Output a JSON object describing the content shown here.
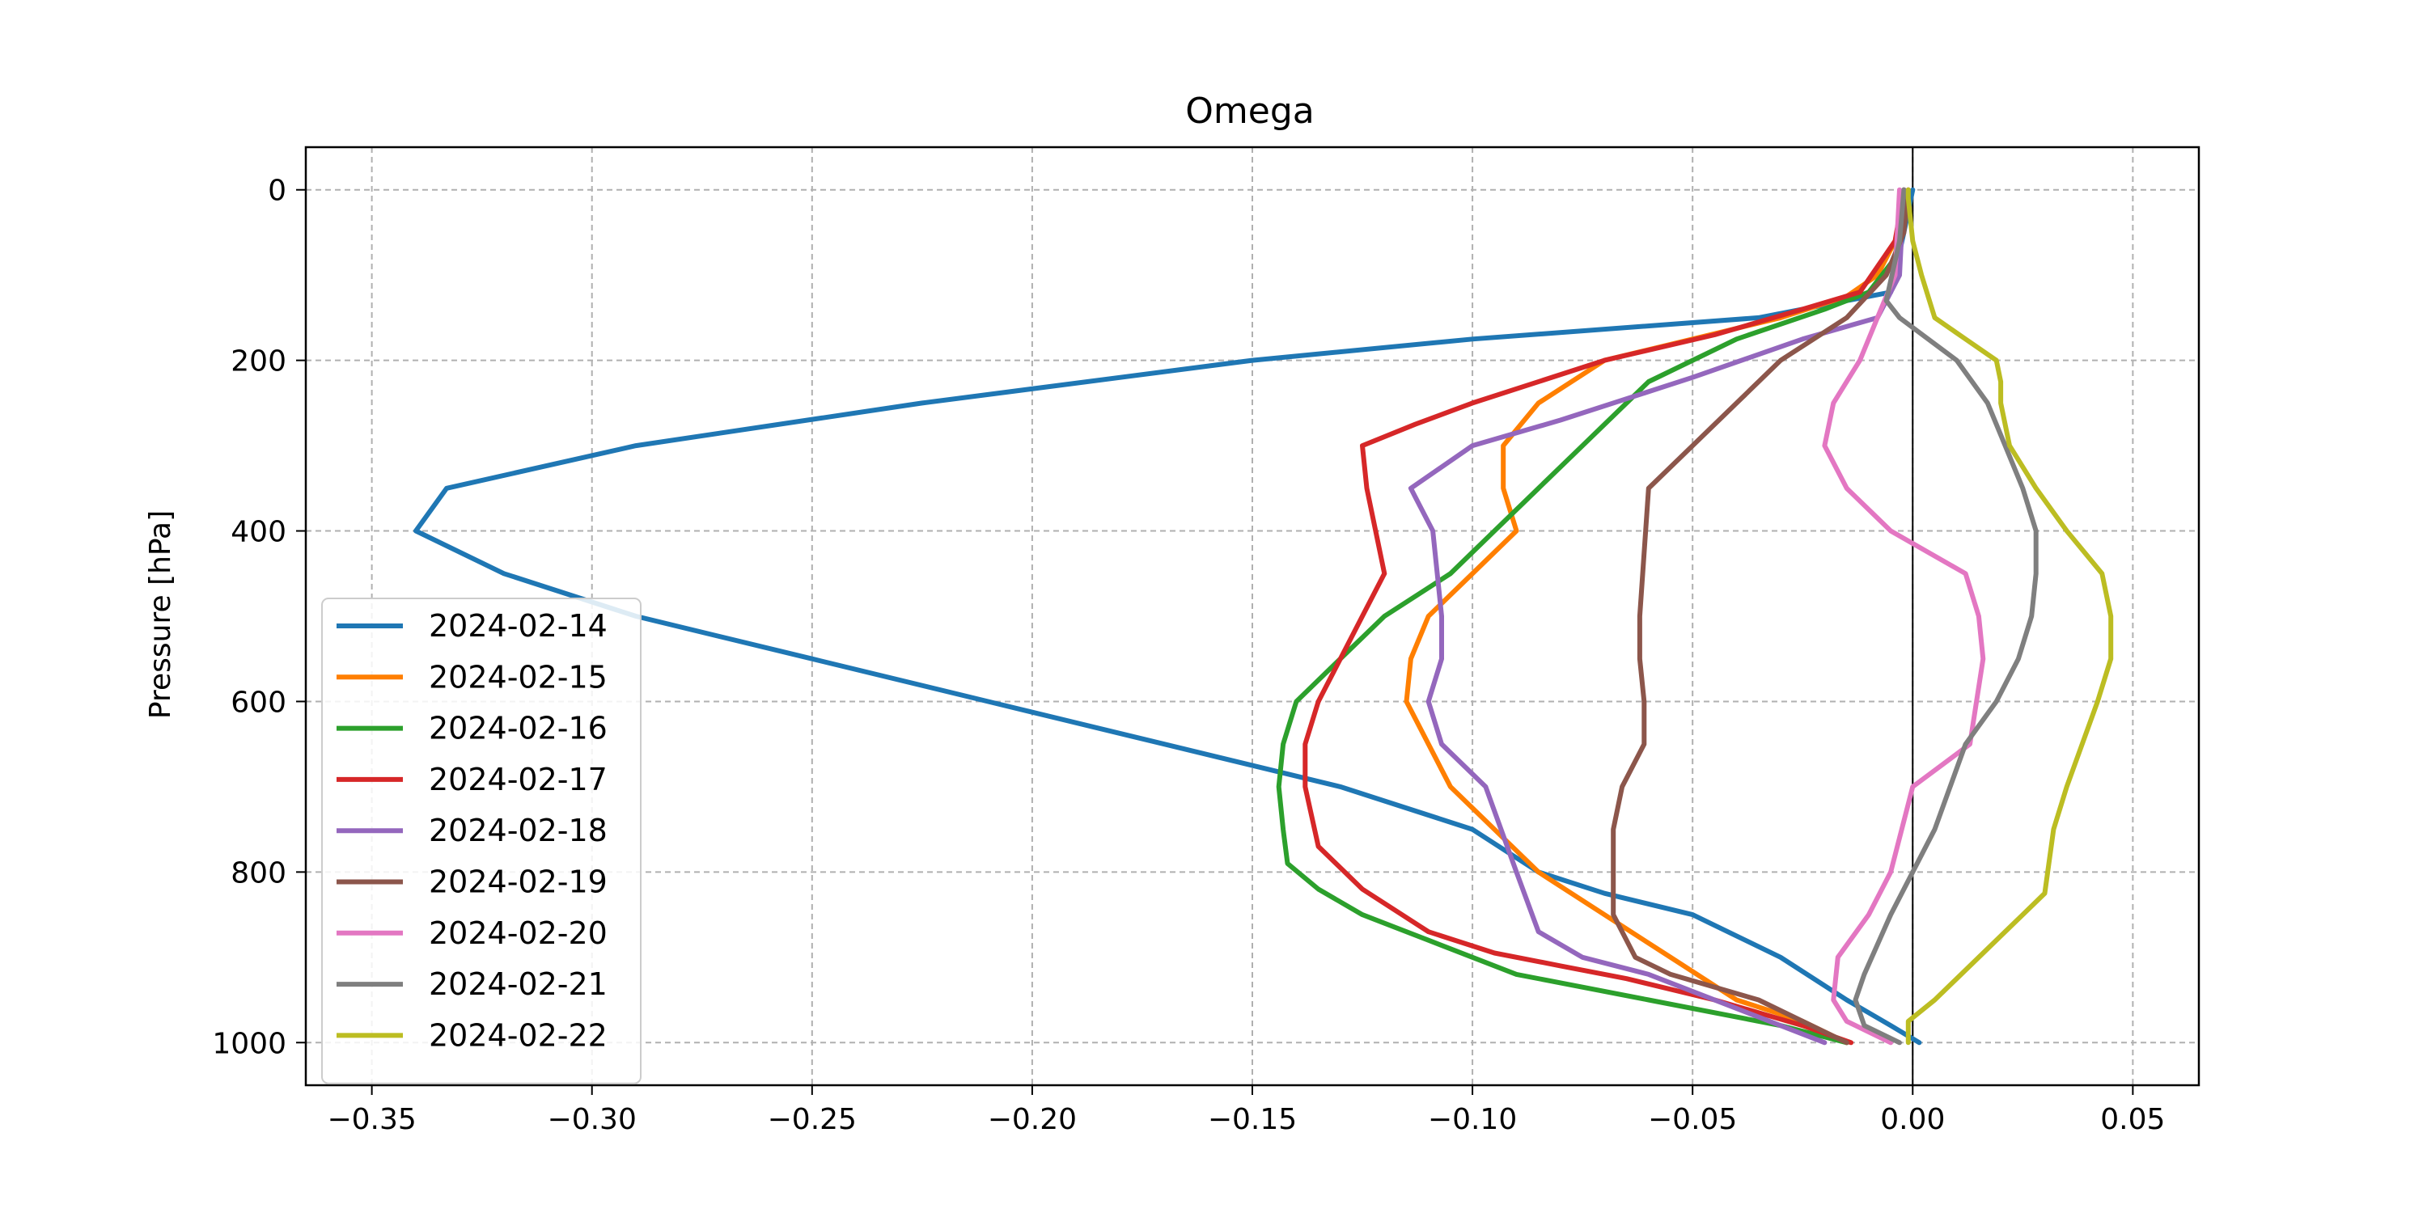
{
  "chart_data": {
    "type": "line",
    "title": "Omega",
    "xlabel": "",
    "ylabel": "Pressure [hPa]",
    "xlim": [
      -0.365,
      0.065
    ],
    "ylim": [
      1050,
      -50
    ],
    "y_inverted": true,
    "xticks": [
      -0.35,
      -0.3,
      -0.25,
      -0.2,
      -0.15,
      -0.1,
      -0.05,
      0.0,
      0.05
    ],
    "xtick_labels": [
      "−0.35",
      "−0.30",
      "−0.25",
      "−0.20",
      "−0.15",
      "−0.10",
      "−0.05",
      "0.00",
      "0.05"
    ],
    "yticks": [
      0,
      200,
      400,
      600,
      800,
      1000
    ],
    "ytick_labels": [
      "0",
      "200",
      "400",
      "600",
      "800",
      "1000"
    ],
    "grid": true,
    "zero_line": 0,
    "legend_position": "lower-left",
    "series": [
      {
        "name": "2024-02-14",
        "color": "#1f77b4",
        "x": [
          0.0015,
          -0.005,
          -0.015,
          -0.03,
          -0.05,
          -0.07,
          -0.085,
          -0.1,
          -0.13,
          -0.17,
          -0.21,
          -0.25,
          -0.29,
          -0.32,
          -0.34,
          -0.333,
          -0.29,
          -0.225,
          -0.15,
          -0.1,
          -0.035,
          -0.005,
          -0.002,
          0.0
        ],
        "y": [
          1000,
          980,
          950,
          900,
          850,
          825,
          800,
          750,
          700,
          650,
          600,
          550,
          500,
          450,
          400,
          350,
          300,
          250,
          200,
          175,
          150,
          120,
          50,
          0
        ]
      },
      {
        "name": "2024-02-15",
        "color": "#ff7f00",
        "x": [
          -0.015,
          -0.025,
          -0.04,
          -0.055,
          -0.07,
          -0.085,
          -0.095,
          -0.105,
          -0.115,
          -0.114,
          -0.11,
          -0.1,
          -0.09,
          -0.093,
          -0.093,
          -0.085,
          -0.07,
          -0.05,
          -0.03,
          -0.015,
          -0.008,
          -0.003,
          -0.001
        ],
        "y": [
          1000,
          975,
          950,
          900,
          850,
          800,
          750,
          700,
          600,
          550,
          500,
          450,
          400,
          350,
          300,
          250,
          200,
          175,
          150,
          125,
          100,
          50,
          0
        ]
      },
      {
        "name": "2024-02-16",
        "color": "#2ca02c",
        "x": [
          -0.015,
          -0.03,
          -0.06,
          -0.09,
          -0.11,
          -0.125,
          -0.135,
          -0.142,
          -0.143,
          -0.144,
          -0.143,
          -0.14,
          -0.13,
          -0.12,
          -0.105,
          -0.095,
          -0.085,
          -0.075,
          -0.06,
          -0.04,
          -0.02,
          -0.01,
          -0.004,
          -0.002
        ],
        "y": [
          1000,
          980,
          950,
          920,
          880,
          850,
          820,
          790,
          750,
          700,
          650,
          600,
          550,
          500,
          450,
          400,
          350,
          300,
          225,
          175,
          140,
          120,
          80,
          0
        ]
      },
      {
        "name": "2024-02-17",
        "color": "#d62728",
        "x": [
          -0.014,
          -0.025,
          -0.045,
          -0.065,
          -0.08,
          -0.095,
          -0.11,
          -0.125,
          -0.135,
          -0.138,
          -0.138,
          -0.135,
          -0.13,
          -0.125,
          -0.12,
          -0.122,
          -0.124,
          -0.125,
          -0.113,
          -0.1,
          -0.07,
          -0.045,
          -0.025,
          -0.012,
          -0.004,
          -0.002
        ],
        "y": [
          1000,
          980,
          950,
          925,
          910,
          895,
          870,
          820,
          770,
          700,
          650,
          600,
          550,
          500,
          450,
          400,
          350,
          300,
          275,
          250,
          200,
          170,
          140,
          120,
          60,
          0
        ]
      },
      {
        "name": "2024-02-18",
        "color": "#9467bd",
        "x": [
          -0.02,
          -0.04,
          -0.06,
          -0.075,
          -0.085,
          -0.09,
          -0.097,
          -0.107,
          -0.11,
          -0.107,
          -0.107,
          -0.109,
          -0.113,
          -0.114,
          -0.1,
          -0.08,
          -0.05,
          -0.025,
          -0.008,
          -0.003,
          -0.002
        ],
        "y": [
          1000,
          960,
          920,
          900,
          870,
          800,
          700,
          650,
          600,
          550,
          500,
          400,
          360,
          350,
          300,
          270,
          220,
          175,
          150,
          100,
          0
        ]
      },
      {
        "name": "2024-02-19",
        "color": "#8c564b",
        "x": [
          -0.015,
          -0.035,
          -0.055,
          -0.063,
          -0.068,
          -0.068,
          -0.066,
          -0.061,
          -0.061,
          -0.062,
          -0.062,
          -0.06,
          -0.05,
          -0.04,
          -0.03,
          -0.015,
          -0.006,
          -0.002,
          -0.001
        ],
        "y": [
          1000,
          950,
          920,
          900,
          850,
          750,
          700,
          650,
          600,
          550,
          500,
          350,
          300,
          250,
          200,
          150,
          100,
          50,
          0
        ]
      },
      {
        "name": "2024-02-20",
        "color": "#e377c2",
        "x": [
          -0.005,
          -0.015,
          -0.018,
          -0.017,
          -0.01,
          -0.005,
          0.0,
          0.013,
          0.016,
          0.015,
          0.012,
          -0.005,
          -0.015,
          -0.02,
          -0.018,
          -0.012,
          -0.008,
          -0.004,
          -0.003
        ],
        "y": [
          1000,
          975,
          950,
          900,
          850,
          800,
          700,
          650,
          550,
          500,
          450,
          400,
          350,
          300,
          250,
          200,
          150,
          100,
          0
        ]
      },
      {
        "name": "2024-02-21",
        "color": "#7f7f7f",
        "x": [
          -0.003,
          -0.011,
          -0.013,
          -0.011,
          -0.005,
          0.0,
          0.005,
          0.012,
          0.019,
          0.024,
          0.027,
          0.028,
          0.028,
          0.025,
          0.021,
          0.017,
          0.01,
          -0.003,
          -0.006,
          -0.003,
          -0.002
        ],
        "y": [
          1000,
          980,
          950,
          920,
          850,
          800,
          750,
          650,
          600,
          550,
          500,
          450,
          400,
          350,
          300,
          250,
          200,
          150,
          130,
          60,
          0
        ]
      },
      {
        "name": "2024-02-22",
        "color": "#bcbd22",
        "x": [
          -0.001,
          -0.001,
          0.005,
          0.015,
          0.025,
          0.03,
          0.032,
          0.035,
          0.042,
          0.045,
          0.045,
          0.043,
          0.035,
          0.028,
          0.022,
          0.02,
          0.02,
          0.019,
          0.012,
          0.005,
          0.002,
          0.0,
          -0.001,
          -0.001
        ],
        "y": [
          1000,
          975,
          950,
          900,
          850,
          825,
          750,
          700,
          600,
          550,
          500,
          450,
          400,
          350,
          300,
          250,
          225,
          200,
          175,
          150,
          100,
          60,
          10,
          0
        ]
      }
    ]
  }
}
